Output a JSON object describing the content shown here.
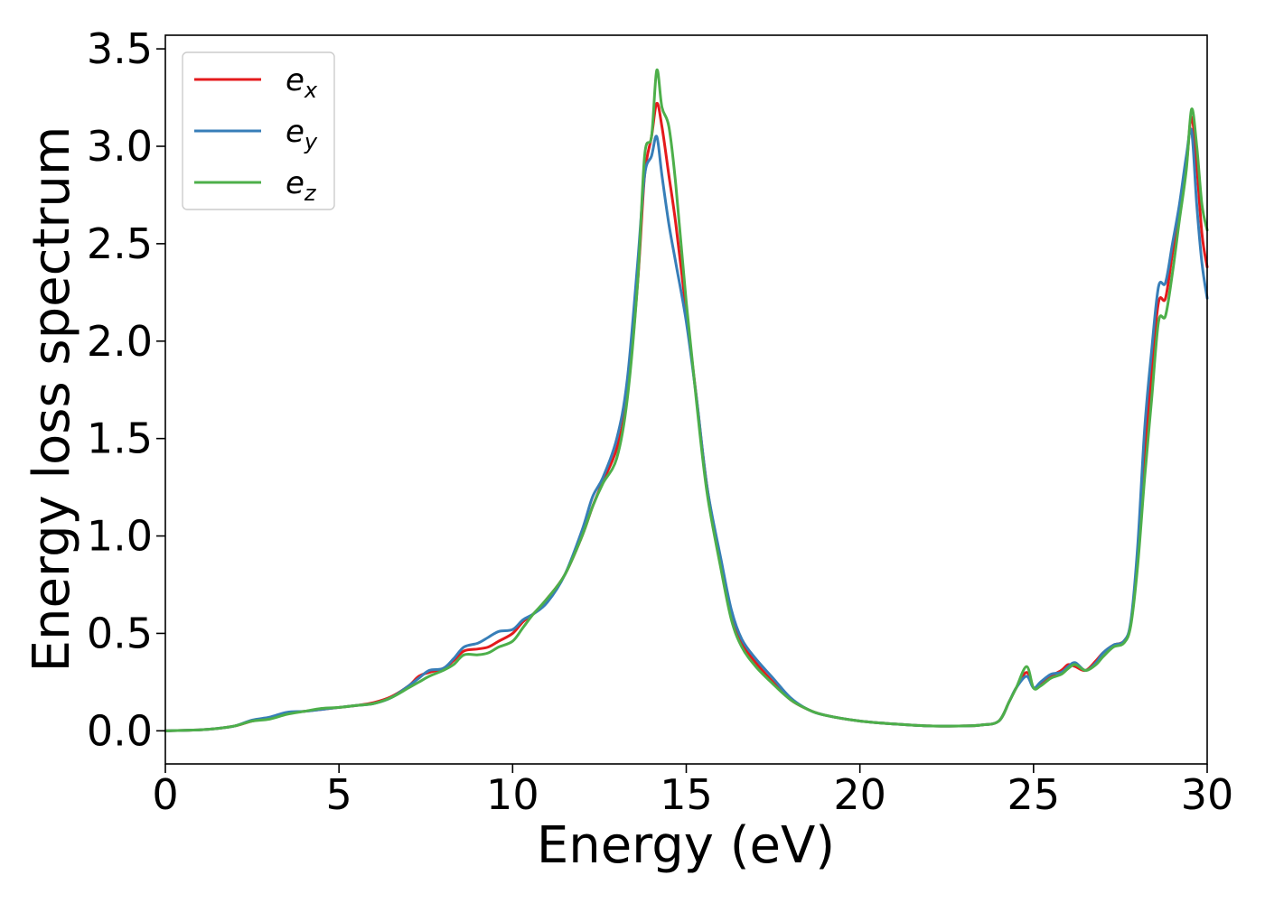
{
  "chart_data": {
    "type": "line",
    "title": "",
    "xlabel": "Energy (eV)",
    "ylabel": "Energy loss spectrum",
    "xlim": [
      0,
      30
    ],
    "ylim": [
      -0.17,
      3.57
    ],
    "xticks": [
      "0",
      "5",
      "10",
      "15",
      "20",
      "25",
      "30"
    ],
    "yticks": [
      "0.0",
      "0.5",
      "1.0",
      "1.5",
      "2.0",
      "2.5",
      "3.0",
      "3.5"
    ],
    "grid": false,
    "legend_position": "top-left",
    "legend": [
      {
        "base": "e",
        "sub": "x"
      },
      {
        "base": "e",
        "sub": "y"
      },
      {
        "base": "e",
        "sub": "z"
      }
    ],
    "series": [
      {
        "color": "#e41a1c",
        "x": [
          0,
          1,
          1.5,
          2,
          2.5,
          3,
          3.5,
          4,
          4.5,
          5,
          5.5,
          6,
          6.5,
          7,
          7.3,
          7.6,
          8,
          8.3,
          8.6,
          9,
          9.3,
          9.6,
          10,
          10.3,
          10.6,
          11,
          11.5,
          12,
          12.3,
          12.6,
          13,
          13.3,
          13.6,
          13.8,
          14,
          14.15,
          14.3,
          14.5,
          14.7,
          15,
          15.3,
          15.6,
          16,
          16.3,
          16.6,
          17,
          17.5,
          18,
          18.5,
          19,
          20,
          21,
          22,
          23,
          23.5,
          24,
          24.3,
          24.5,
          24.8,
          25,
          25.2,
          25.5,
          25.8,
          26,
          26.2,
          26.5,
          26.8,
          27,
          27.3,
          27.6,
          27.8,
          28,
          28.2,
          28.4,
          28.6,
          28.8,
          29,
          29.2,
          29.4,
          29.55,
          29.7,
          29.85,
          30
        ],
        "y": [
          0.0,
          0.005,
          0.012,
          0.025,
          0.05,
          0.065,
          0.09,
          0.1,
          0.11,
          0.12,
          0.13,
          0.145,
          0.175,
          0.23,
          0.28,
          0.3,
          0.32,
          0.36,
          0.41,
          0.42,
          0.43,
          0.46,
          0.5,
          0.56,
          0.6,
          0.68,
          0.8,
          1.0,
          1.15,
          1.28,
          1.45,
          1.72,
          2.3,
          2.85,
          3.05,
          3.22,
          3.1,
          2.85,
          2.6,
          2.15,
          1.7,
          1.25,
          0.85,
          0.6,
          0.45,
          0.35,
          0.25,
          0.16,
          0.11,
          0.08,
          0.05,
          0.035,
          0.025,
          0.025,
          0.03,
          0.05,
          0.15,
          0.22,
          0.3,
          0.22,
          0.24,
          0.28,
          0.31,
          0.34,
          0.33,
          0.31,
          0.36,
          0.4,
          0.44,
          0.46,
          0.55,
          0.9,
          1.4,
          1.85,
          2.2,
          2.22,
          2.45,
          2.65,
          2.9,
          3.15,
          2.9,
          2.55,
          2.38
        ]
      },
      {
        "color": "#377eb8",
        "x": [
          0,
          1,
          1.5,
          2,
          2.5,
          3,
          3.5,
          4,
          4.5,
          5,
          5.5,
          6,
          6.5,
          7,
          7.3,
          7.6,
          8,
          8.3,
          8.6,
          9,
          9.3,
          9.6,
          10,
          10.3,
          10.6,
          11,
          11.5,
          12,
          12.3,
          12.6,
          13,
          13.3,
          13.6,
          13.8,
          14,
          14.15,
          14.3,
          14.5,
          14.7,
          15,
          15.3,
          15.6,
          16,
          16.3,
          16.6,
          17,
          17.5,
          18,
          18.5,
          19,
          20,
          21,
          22,
          23,
          23.5,
          24,
          24.3,
          24.5,
          24.8,
          25,
          25.2,
          25.5,
          25.8,
          26,
          26.2,
          26.5,
          26.8,
          27,
          27.3,
          27.6,
          27.8,
          28,
          28.2,
          28.4,
          28.6,
          28.8,
          29,
          29.2,
          29.4,
          29.55,
          29.7,
          29.85,
          30
        ],
        "y": [
          0.0,
          0.005,
          0.012,
          0.025,
          0.055,
          0.07,
          0.095,
          0.1,
          0.11,
          0.12,
          0.13,
          0.14,
          0.17,
          0.23,
          0.27,
          0.31,
          0.32,
          0.37,
          0.43,
          0.45,
          0.48,
          0.51,
          0.52,
          0.57,
          0.6,
          0.66,
          0.8,
          1.03,
          1.2,
          1.3,
          1.5,
          1.8,
          2.4,
          2.85,
          2.95,
          3.05,
          2.85,
          2.6,
          2.4,
          2.1,
          1.7,
          1.25,
          0.88,
          0.62,
          0.47,
          0.37,
          0.27,
          0.17,
          0.11,
          0.08,
          0.05,
          0.035,
          0.025,
          0.025,
          0.03,
          0.05,
          0.15,
          0.22,
          0.28,
          0.22,
          0.25,
          0.29,
          0.3,
          0.33,
          0.35,
          0.31,
          0.35,
          0.4,
          0.44,
          0.46,
          0.56,
          0.95,
          1.55,
          1.95,
          2.28,
          2.3,
          2.5,
          2.7,
          2.95,
          3.08,
          2.7,
          2.4,
          2.22
        ]
      },
      {
        "color": "#4daf4a",
        "x": [
          0,
          1,
          1.5,
          2,
          2.5,
          3,
          3.5,
          4,
          4.5,
          5,
          5.5,
          6,
          6.5,
          7,
          7.3,
          7.6,
          8,
          8.3,
          8.6,
          9,
          9.3,
          9.6,
          10,
          10.3,
          10.6,
          11,
          11.5,
          12,
          12.3,
          12.6,
          13,
          13.3,
          13.6,
          13.8,
          14,
          14.15,
          14.3,
          14.5,
          14.7,
          15,
          15.3,
          15.6,
          16,
          16.3,
          16.6,
          17,
          17.5,
          18,
          18.5,
          19,
          20,
          21,
          22,
          23,
          23.5,
          24,
          24.3,
          24.5,
          24.8,
          25,
          25.2,
          25.5,
          25.8,
          26,
          26.2,
          26.5,
          26.8,
          27,
          27.3,
          27.6,
          27.8,
          28,
          28.2,
          28.4,
          28.6,
          28.8,
          29,
          29.2,
          29.4,
          29.55,
          29.7,
          29.85,
          30
        ],
        "y": [
          0.0,
          0.005,
          0.012,
          0.025,
          0.05,
          0.06,
          0.085,
          0.1,
          0.115,
          0.12,
          0.13,
          0.14,
          0.17,
          0.22,
          0.25,
          0.28,
          0.31,
          0.34,
          0.39,
          0.39,
          0.4,
          0.43,
          0.46,
          0.53,
          0.6,
          0.68,
          0.8,
          1.0,
          1.15,
          1.27,
          1.4,
          1.7,
          2.3,
          2.95,
          3.05,
          3.39,
          3.2,
          3.1,
          2.8,
          2.2,
          1.68,
          1.22,
          0.83,
          0.57,
          0.43,
          0.33,
          0.24,
          0.16,
          0.11,
          0.08,
          0.05,
          0.035,
          0.025,
          0.025,
          0.03,
          0.05,
          0.15,
          0.22,
          0.33,
          0.22,
          0.23,
          0.27,
          0.29,
          0.32,
          0.34,
          0.31,
          0.34,
          0.38,
          0.43,
          0.45,
          0.54,
          0.85,
          1.3,
          1.7,
          2.1,
          2.13,
          2.35,
          2.62,
          2.88,
          3.19,
          3.0,
          2.7,
          2.57
        ]
      }
    ]
  }
}
